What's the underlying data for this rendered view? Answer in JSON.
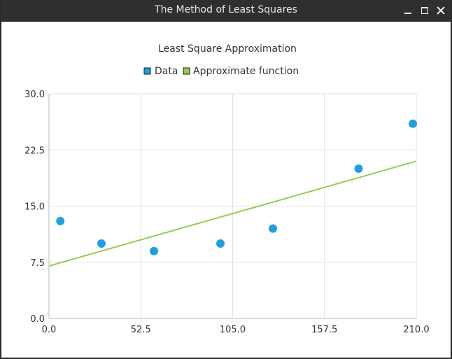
{
  "window": {
    "title": "The Method of Least Squares"
  },
  "chart_data": {
    "type": "scatter",
    "title": "Least Square Approximation",
    "legend": {
      "placement": "top-center",
      "entries": [
        "Data",
        "Approximate function"
      ]
    },
    "xlim": [
      0,
      210
    ],
    "ylim": [
      0,
      30
    ],
    "x_ticks": [
      "0.0",
      "52.5",
      "105.0",
      "157.5",
      "210.0"
    ],
    "y_ticks": [
      "0.0",
      "7.5",
      "15.0",
      "22.5",
      "30.0"
    ],
    "x_tick_values": [
      0,
      52.5,
      105,
      157.5,
      210
    ],
    "y_tick_values": [
      0,
      7.5,
      15,
      22.5,
      30
    ],
    "grid": true,
    "series": [
      {
        "name": "Data",
        "kind": "scatter",
        "color": "#209fdf",
        "points": [
          [
            6.5,
            13.0
          ],
          [
            30,
            10.0
          ],
          [
            60,
            9.0
          ],
          [
            98,
            10.0
          ],
          [
            128,
            12.0
          ],
          [
            177,
            20.0
          ],
          [
            208,
            26.0
          ]
        ]
      },
      {
        "name": "Approximate function",
        "kind": "line",
        "color": "#99ca53",
        "points": [
          [
            0,
            7.0
          ],
          [
            210,
            21.0
          ]
        ]
      }
    ]
  }
}
